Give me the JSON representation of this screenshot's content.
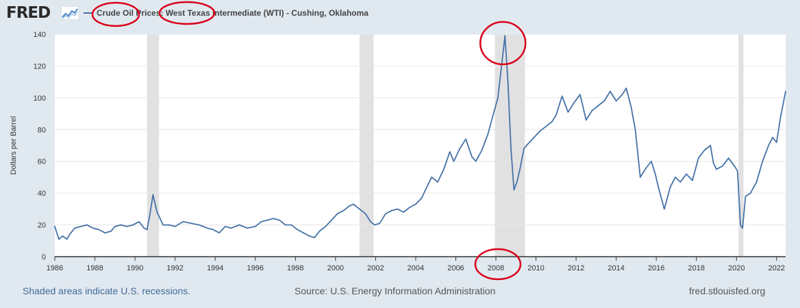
{
  "header": {
    "logo_text": "FRED",
    "title": "Crude Oil Prices: West Texas Intermediate (WTI) - Cushing, Oklahoma"
  },
  "footer": {
    "recession_note": "Shaded areas indicate U.S. recessions.",
    "source": "Source: U.S. Energy Information Administration",
    "url": "fred.stlouisfed.org"
  },
  "colors": {
    "line": "#4572a7",
    "recession": "#e1e1e1",
    "annotation": "#d9001b",
    "background": "#e1e9f0"
  },
  "chart_data": {
    "type": "line",
    "title": "Crude Oil Prices: West Texas Intermediate (WTI) - Cushing, Oklahoma",
    "xlabel": "",
    "ylabel": "Dollars per Barrel",
    "xlim": [
      1986.0,
      2022.45
    ],
    "ylim": [
      0,
      140
    ],
    "x_ticks": [
      1986,
      1988,
      1990,
      1992,
      1994,
      1996,
      1998,
      2000,
      2002,
      2004,
      2006,
      2008,
      2010,
      2012,
      2014,
      2016,
      2018,
      2020,
      2022
    ],
    "y_ticks": [
      0,
      20,
      40,
      60,
      80,
      100,
      120,
      140
    ],
    "grid": "horizontal",
    "recessions": [
      [
        1990.6,
        1991.2
      ],
      [
        2001.2,
        2001.9
      ],
      [
        2007.95,
        2009.45
      ],
      [
        2020.1,
        2020.35
      ]
    ],
    "series": [
      {
        "name": "Crude Oil Prices: West Texas Intermediate (WTI) - Cushing, Oklahoma",
        "x": [
          1986.0,
          1986.2,
          1986.4,
          1986.6,
          1986.8,
          1987.0,
          1987.3,
          1987.6,
          1987.9,
          1988.2,
          1988.5,
          1988.8,
          1989.0,
          1989.3,
          1989.6,
          1989.9,
          1990.2,
          1990.45,
          1990.6,
          1990.75,
          1990.9,
          1991.1,
          1991.4,
          1991.7,
          1992.0,
          1992.4,
          1992.8,
          1993.2,
          1993.6,
          1993.9,
          1994.2,
          1994.5,
          1994.8,
          1995.2,
          1995.6,
          1996.0,
          1996.3,
          1996.6,
          1996.9,
          1997.2,
          1997.5,
          1997.8,
          1998.1,
          1998.4,
          1998.7,
          1998.95,
          1999.2,
          1999.5,
          1999.8,
          2000.1,
          2000.4,
          2000.7,
          2000.9,
          2001.2,
          2001.5,
          2001.75,
          2001.95,
          2002.2,
          2002.5,
          2002.8,
          2003.1,
          2003.4,
          2003.7,
          2004.0,
          2004.3,
          2004.6,
          2004.8,
          2005.1,
          2005.4,
          2005.7,
          2005.9,
          2006.2,
          2006.5,
          2006.8,
          2007.0,
          2007.3,
          2007.6,
          2007.9,
          2008.1,
          2008.3,
          2008.45,
          2008.6,
          2008.75,
          2008.9,
          2009.05,
          2009.2,
          2009.4,
          2009.6,
          2009.9,
          2010.2,
          2010.5,
          2010.8,
          2011.0,
          2011.3,
          2011.6,
          2011.9,
          2012.2,
          2012.5,
          2012.8,
          2013.1,
          2013.4,
          2013.7,
          2014.0,
          2014.3,
          2014.5,
          2014.75,
          2014.95,
          2015.2,
          2015.5,
          2015.75,
          2015.95,
          2016.1,
          2016.4,
          2016.7,
          2016.95,
          2017.2,
          2017.5,
          2017.8,
          2018.1,
          2018.4,
          2018.7,
          2018.85,
          2019.0,
          2019.3,
          2019.6,
          2019.9,
          2020.05,
          2020.2,
          2020.3,
          2020.45,
          2020.7,
          2021.0,
          2021.3,
          2021.6,
          2021.8,
          2022.0,
          2022.2,
          2022.45
        ],
        "values": [
          19,
          11,
          13,
          11,
          15,
          18,
          19,
          20,
          18,
          17,
          15,
          16,
          19,
          20,
          19,
          20,
          22,
          18,
          17,
          27,
          39,
          28,
          20,
          20,
          19,
          22,
          21,
          20,
          18,
          17,
          15,
          19,
          18,
          20,
          18,
          19,
          22,
          23,
          24,
          23,
          20,
          20,
          17,
          15,
          13,
          12,
          16,
          19,
          23,
          27,
          29,
          32,
          33,
          30,
          27,
          22,
          20,
          21,
          27,
          29,
          30,
          28,
          31,
          33,
          37,
          45,
          50,
          47,
          55,
          66,
          60,
          68,
          74,
          63,
          60,
          67,
          77,
          91,
          100,
          122,
          139,
          110,
          68,
          42,
          47,
          55,
          68,
          71,
          75,
          79,
          82,
          85,
          89,
          101,
          91,
          97,
          102,
          86,
          92,
          95,
          98,
          104,
          98,
          102,
          106,
          94,
          80,
          50,
          56,
          60,
          52,
          44,
          30,
          44,
          50,
          47,
          52,
          48,
          62,
          67,
          70,
          59,
          55,
          57,
          62,
          57,
          54,
          20,
          18,
          38,
          40,
          47,
          60,
          70,
          75,
          72,
          88,
          104
        ]
      }
    ],
    "annotations": [
      {
        "type": "ellipse",
        "target": "Crude Oil"
      },
      {
        "type": "ellipse",
        "target": "West Texas"
      },
      {
        "type": "ellipse",
        "target": "peak",
        "x": 2008.45,
        "y": 139
      },
      {
        "type": "ellipse",
        "target": "x tick 2008",
        "x": 2008,
        "y": 0
      }
    ]
  }
}
